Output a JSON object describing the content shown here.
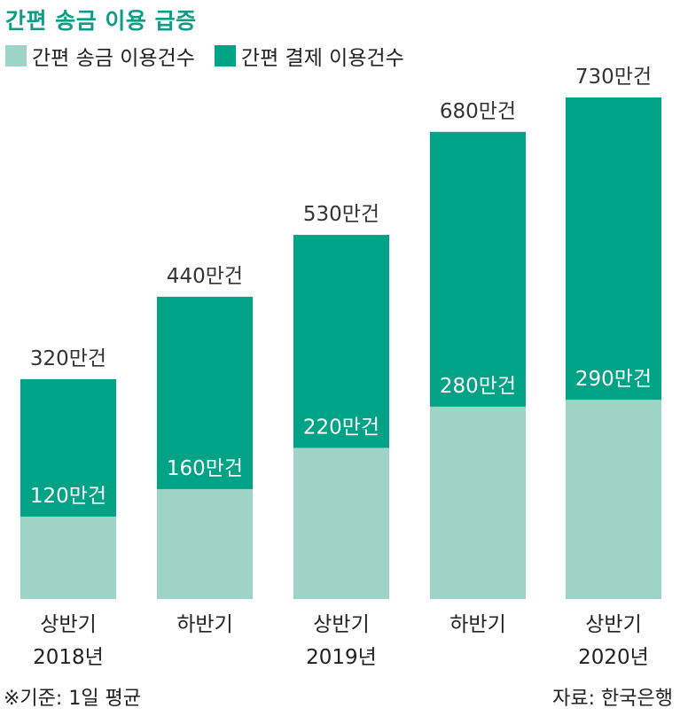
{
  "title": "간편 송금 이용 급증",
  "footnote": "※기준: 1일 평균",
  "source": "자료: 한국은행",
  "colors": {
    "remit": "#9dd4c6",
    "payment": "#00a385",
    "title": "#0e9c84"
  },
  "chart_data": {
    "type": "bar",
    "stacked": true,
    "categories": [
      [
        "상반기",
        "2018년"
      ],
      [
        "하반기",
        ""
      ],
      [
        "상반기",
        "2019년"
      ],
      [
        "하반기",
        ""
      ],
      [
        "상반기",
        "2020년"
      ]
    ],
    "series": [
      {
        "name": "간편 송금 이용건수",
        "values": [
          120,
          160,
          220,
          280,
          290
        ],
        "labels": [
          "120만건",
          "160만건",
          "220만건",
          "280만건",
          "290만건"
        ]
      },
      {
        "name": "간편 결제 이용건수",
        "values": [
          200,
          280,
          310,
          400,
          440
        ]
      }
    ],
    "totals": [
      320,
      440,
      530,
      680,
      730
    ],
    "total_labels": [
      "320만건",
      "440만건",
      "530만건",
      "680만건",
      "730만건"
    ],
    "unit": "만건",
    "ylim": [
      0,
      730
    ],
    "grid": false,
    "legend_position": "top-left"
  }
}
